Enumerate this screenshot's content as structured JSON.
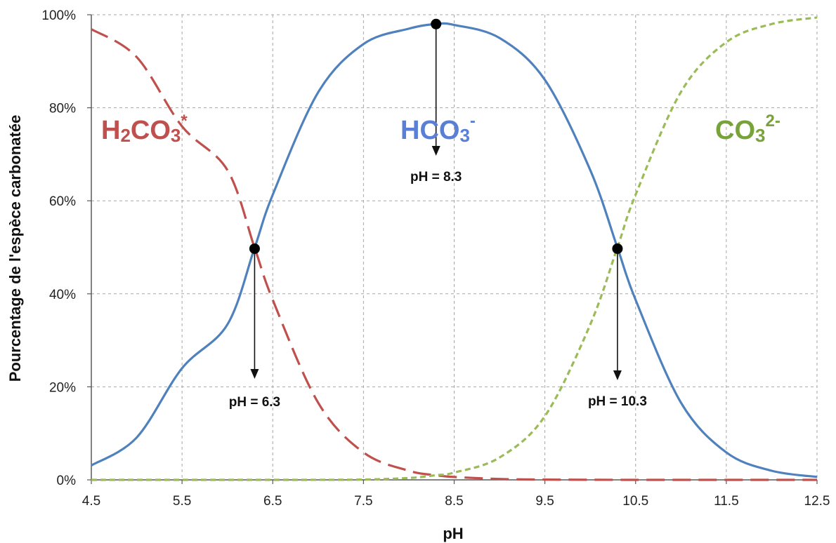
{
  "chart_data": {
    "type": "line",
    "xlabel": "pH",
    "ylabel": "Pourcentage de l'espèce carbonatée",
    "xlim": [
      4.5,
      12.5
    ],
    "ylim": [
      0,
      100
    ],
    "x_ticks": [
      "4.5",
      "5.5",
      "6.5",
      "7.5",
      "8.5",
      "9.5",
      "10.5",
      "11.5",
      "12.5"
    ],
    "y_ticks": [
      "0%",
      "20%",
      "40%",
      "60%",
      "80%",
      "100%"
    ],
    "grid": true,
    "pK1": 6.3,
    "pK2": 10.3,
    "x": [
      4.5,
      5.0,
      5.5,
      6.0,
      6.3,
      6.5,
      7.0,
      7.5,
      8.0,
      8.3,
      8.5,
      9.0,
      9.5,
      10.0,
      10.3,
      10.5,
      11.0,
      11.5,
      12.0,
      12.5
    ],
    "series": [
      {
        "name": "H2CO3*",
        "color": "#c0504d",
        "style": "long-dash",
        "values": [
          96.9,
          90.9,
          76.0,
          66.6,
          49.9,
          38.7,
          16.6,
          5.9,
          1.96,
          0.99,
          0.62,
          0.19,
          0.06,
          0.02,
          0.01,
          0.0,
          0.0,
          0.0,
          0.0,
          0.0
        ]
      },
      {
        "name": "HCO3-",
        "color": "#4f81bd",
        "style": "solid",
        "values": [
          3.1,
          9.1,
          24.0,
          33.4,
          49.9,
          61.3,
          83.3,
          93.7,
          97.0,
          98.0,
          97.8,
          95.0,
          86.0,
          66.6,
          49.9,
          38.7,
          16.6,
          5.9,
          1.96,
          0.63
        ]
      },
      {
        "name": "CO3 2-",
        "color": "#9bbb59",
        "style": "short-dash",
        "values": [
          0.0,
          0.0,
          0.0,
          0.0,
          0.0,
          0.0,
          0.01,
          0.06,
          0.4,
          1.0,
          1.56,
          4.8,
          13.7,
          33.4,
          50.0,
          61.3,
          83.4,
          94.1,
          98.0,
          99.4
        ]
      }
    ],
    "markers": [
      {
        "x": 6.3,
        "y": 49.7
      },
      {
        "x": 8.3,
        "y": 98.0
      },
      {
        "x": 10.3,
        "y": 49.7
      }
    ],
    "annotations": [
      {
        "label": "pH = 6.3",
        "x": 6.3
      },
      {
        "label": "pH = 8.3",
        "x": 8.3
      },
      {
        "label": "pH = 10.3",
        "x": 10.3
      }
    ],
    "species_labels": {
      "h2co3_main": "H",
      "h2co3_sub": "2",
      "h2co3_rest": "CO",
      "h2co3_sub2": "3",
      "h2co3_sup": "*",
      "hco3_main": "HCO",
      "hco3_sub": "3",
      "hco3_sup": "-",
      "co3_main": "CO",
      "co3_sub": "3",
      "co3_sup": "2-"
    }
  }
}
